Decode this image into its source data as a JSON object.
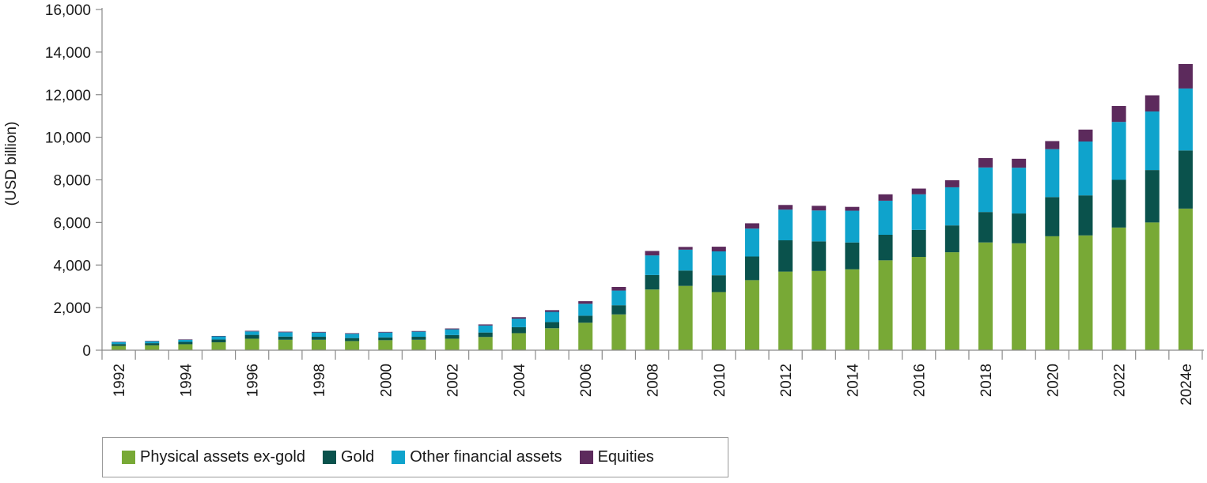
{
  "chart_data": {
    "type": "bar",
    "stacked": true,
    "ylabel": "(USD billion)",
    "xlabel": "",
    "ylim": [
      0,
      16000
    ],
    "yticks": [
      0,
      2000,
      4000,
      6000,
      8000,
      10000,
      12000,
      14000,
      16000
    ],
    "ytick_labels": [
      "0",
      "2,000",
      "4,000",
      "6,000",
      "8,000",
      "10,000",
      "12,000",
      "14,000",
      "16,000"
    ],
    "categories": [
      "1992",
      "1993",
      "1994",
      "1995",
      "1996",
      "1997",
      "1998",
      "1999",
      "2000",
      "2001",
      "2002",
      "2003",
      "2004",
      "2005",
      "2006",
      "2007",
      "2008",
      "2009",
      "2010",
      "2011",
      "2012",
      "2013",
      "2014",
      "2015",
      "2016",
      "2017",
      "2018",
      "2019",
      "2020",
      "2021",
      "2022",
      "2023",
      "2024e"
    ],
    "xtick_labels_shown": [
      "1992",
      "1994",
      "1996",
      "1998",
      "2000",
      "2002",
      "2004",
      "2006",
      "2008",
      "2010",
      "2012",
      "2014",
      "2016",
      "2018",
      "2020",
      "2022",
      "2024e"
    ],
    "series": [
      {
        "name": "Physical assets ex-gold",
        "color": "#78a936",
        "values": [
          200,
          230,
          280,
          370,
          540,
          490,
          490,
          430,
          470,
          490,
          540,
          620,
          800,
          1030,
          1290,
          1680,
          2850,
          3020,
          2730,
          3290,
          3690,
          3720,
          3800,
          4220,
          4380,
          4600,
          5060,
          5020,
          5350,
          5390,
          5760,
          6000,
          6650
        ]
      },
      {
        "name": "Gold",
        "color": "#0a524c",
        "values": [
          90,
          100,
          110,
          130,
          180,
          150,
          140,
          140,
          130,
          140,
          170,
          210,
          280,
          290,
          330,
          430,
          680,
          720,
          790,
          1110,
          1470,
          1390,
          1260,
          1200,
          1270,
          1260,
          1430,
          1400,
          1840,
          1880,
          2240,
          2460,
          2730
        ]
      },
      {
        "name": "Other financial assets",
        "color": "#0fa3cc",
        "values": [
          90,
          90,
          100,
          150,
          160,
          200,
          200,
          200,
          230,
          240,
          270,
          330,
          400,
          480,
          560,
          690,
          920,
          980,
          1120,
          1310,
          1440,
          1450,
          1490,
          1600,
          1670,
          1790,
          2090,
          2150,
          2250,
          2530,
          2720,
          2750,
          2910
        ]
      },
      {
        "name": "Equities",
        "color": "#5c2a5c",
        "values": [
          20,
          20,
          20,
          20,
          30,
          30,
          30,
          30,
          30,
          30,
          40,
          50,
          70,
          80,
          120,
          170,
          210,
          130,
          220,
          250,
          220,
          220,
          180,
          300,
          270,
          330,
          440,
          420,
          380,
          560,
          750,
          760,
          1150
        ]
      }
    ],
    "legend": "bottom",
    "grid": false
  }
}
